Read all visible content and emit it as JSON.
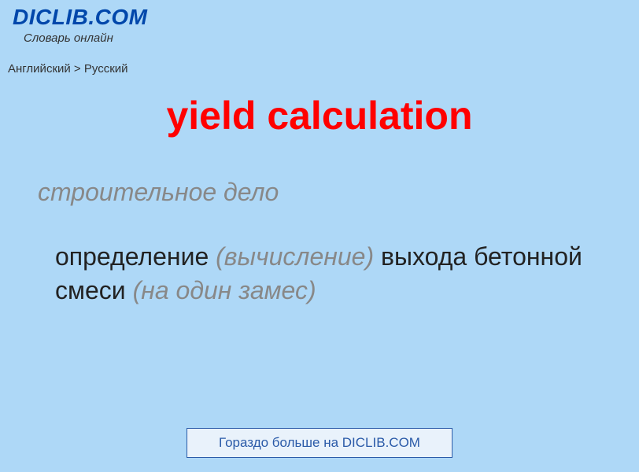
{
  "header": {
    "site_title": "DICLIB.COM",
    "site_subtitle": "Словарь онлайн"
  },
  "breadcrumb": {
    "text": "Английский > Русский"
  },
  "entry": {
    "title": "yield calculation",
    "domain_label": "строительное дело",
    "definition_part1": "определение ",
    "definition_paren1": "(вычисление)",
    "definition_part2": " выхода бетонной смеси ",
    "definition_paren2": "(на один замес)"
  },
  "footer": {
    "link_text": "Гораздо больше на DICLIB.COM"
  },
  "colors": {
    "background": "#aed8f7",
    "title_color": "#ff0000",
    "site_title_color": "#0047ab",
    "domain_label_color": "#888888",
    "paren_color": "#888888",
    "body_text_color": "#222222",
    "footer_border": "#2a5aa8",
    "footer_bg": "#e9f2fb",
    "footer_text": "#2a5aa8"
  },
  "typography": {
    "site_title_fontsize": 28,
    "site_subtitle_fontsize": 15,
    "breadcrumb_fontsize": 15,
    "main_title_fontsize": 50,
    "domain_label_fontsize": 32,
    "definition_fontsize": 32,
    "footer_fontsize": 17
  }
}
